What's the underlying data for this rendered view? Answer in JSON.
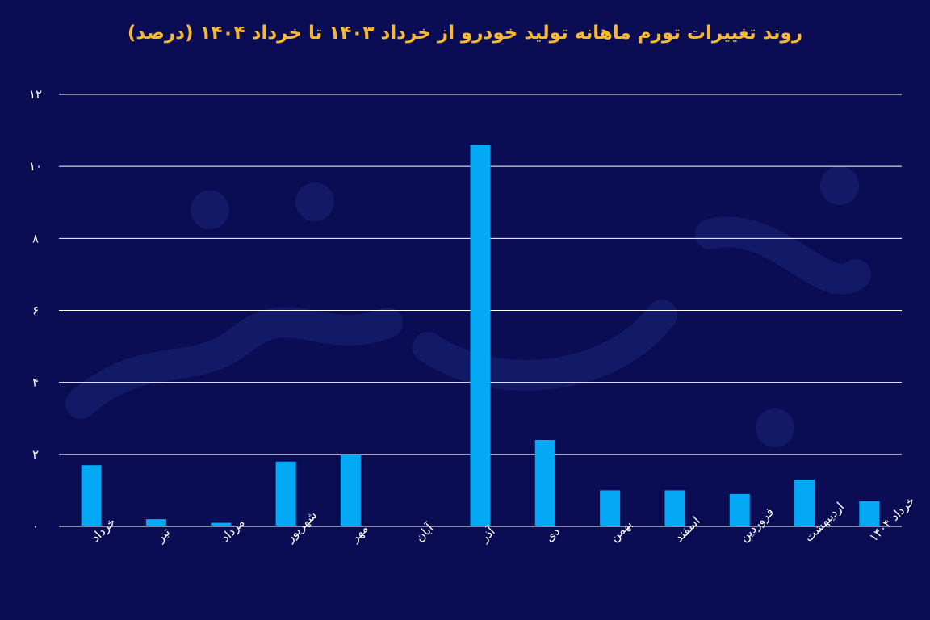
{
  "title": "روند تغییرات تورم ماهانه تولید خودرو از خرداد ۱۴۰۳ تا خرداد ۱۴۰۴ (درصد)",
  "colors": {
    "background": "#0b0d54",
    "bar": "#03a9f4",
    "title": "#f5b82e",
    "grid": "#ffffff",
    "text": "#ffffff"
  },
  "chart_data": {
    "type": "bar",
    "title": "روند تغییرات تورم ماهانه تولید خودرو از خرداد ۱۴۰۳ تا خرداد ۱۴۰۴ (درصد)",
    "categories": [
      "خرداد",
      "تیر",
      "مرداد",
      "شهریور",
      "مهر",
      "آبان",
      "آذر",
      "دی",
      "بهمن",
      "اسفند",
      "فروردین",
      "اردیبهشت",
      "خرداد ۱۴۰۴"
    ],
    "values": [
      1.7,
      0.2,
      0.1,
      1.8,
      2.0,
      0,
      10.6,
      2.4,
      1.0,
      1.0,
      0.9,
      1.3,
      0.7
    ],
    "ylim": [
      0,
      12
    ],
    "yticks": [
      0,
      2,
      4,
      6,
      8,
      10,
      12
    ],
    "ytick_labels": [
      "۰",
      "۲",
      "۴",
      "۶",
      "۸",
      "۱۰",
      "۱۲"
    ],
    "grid": true,
    "xlabel": "",
    "ylabel": ""
  }
}
